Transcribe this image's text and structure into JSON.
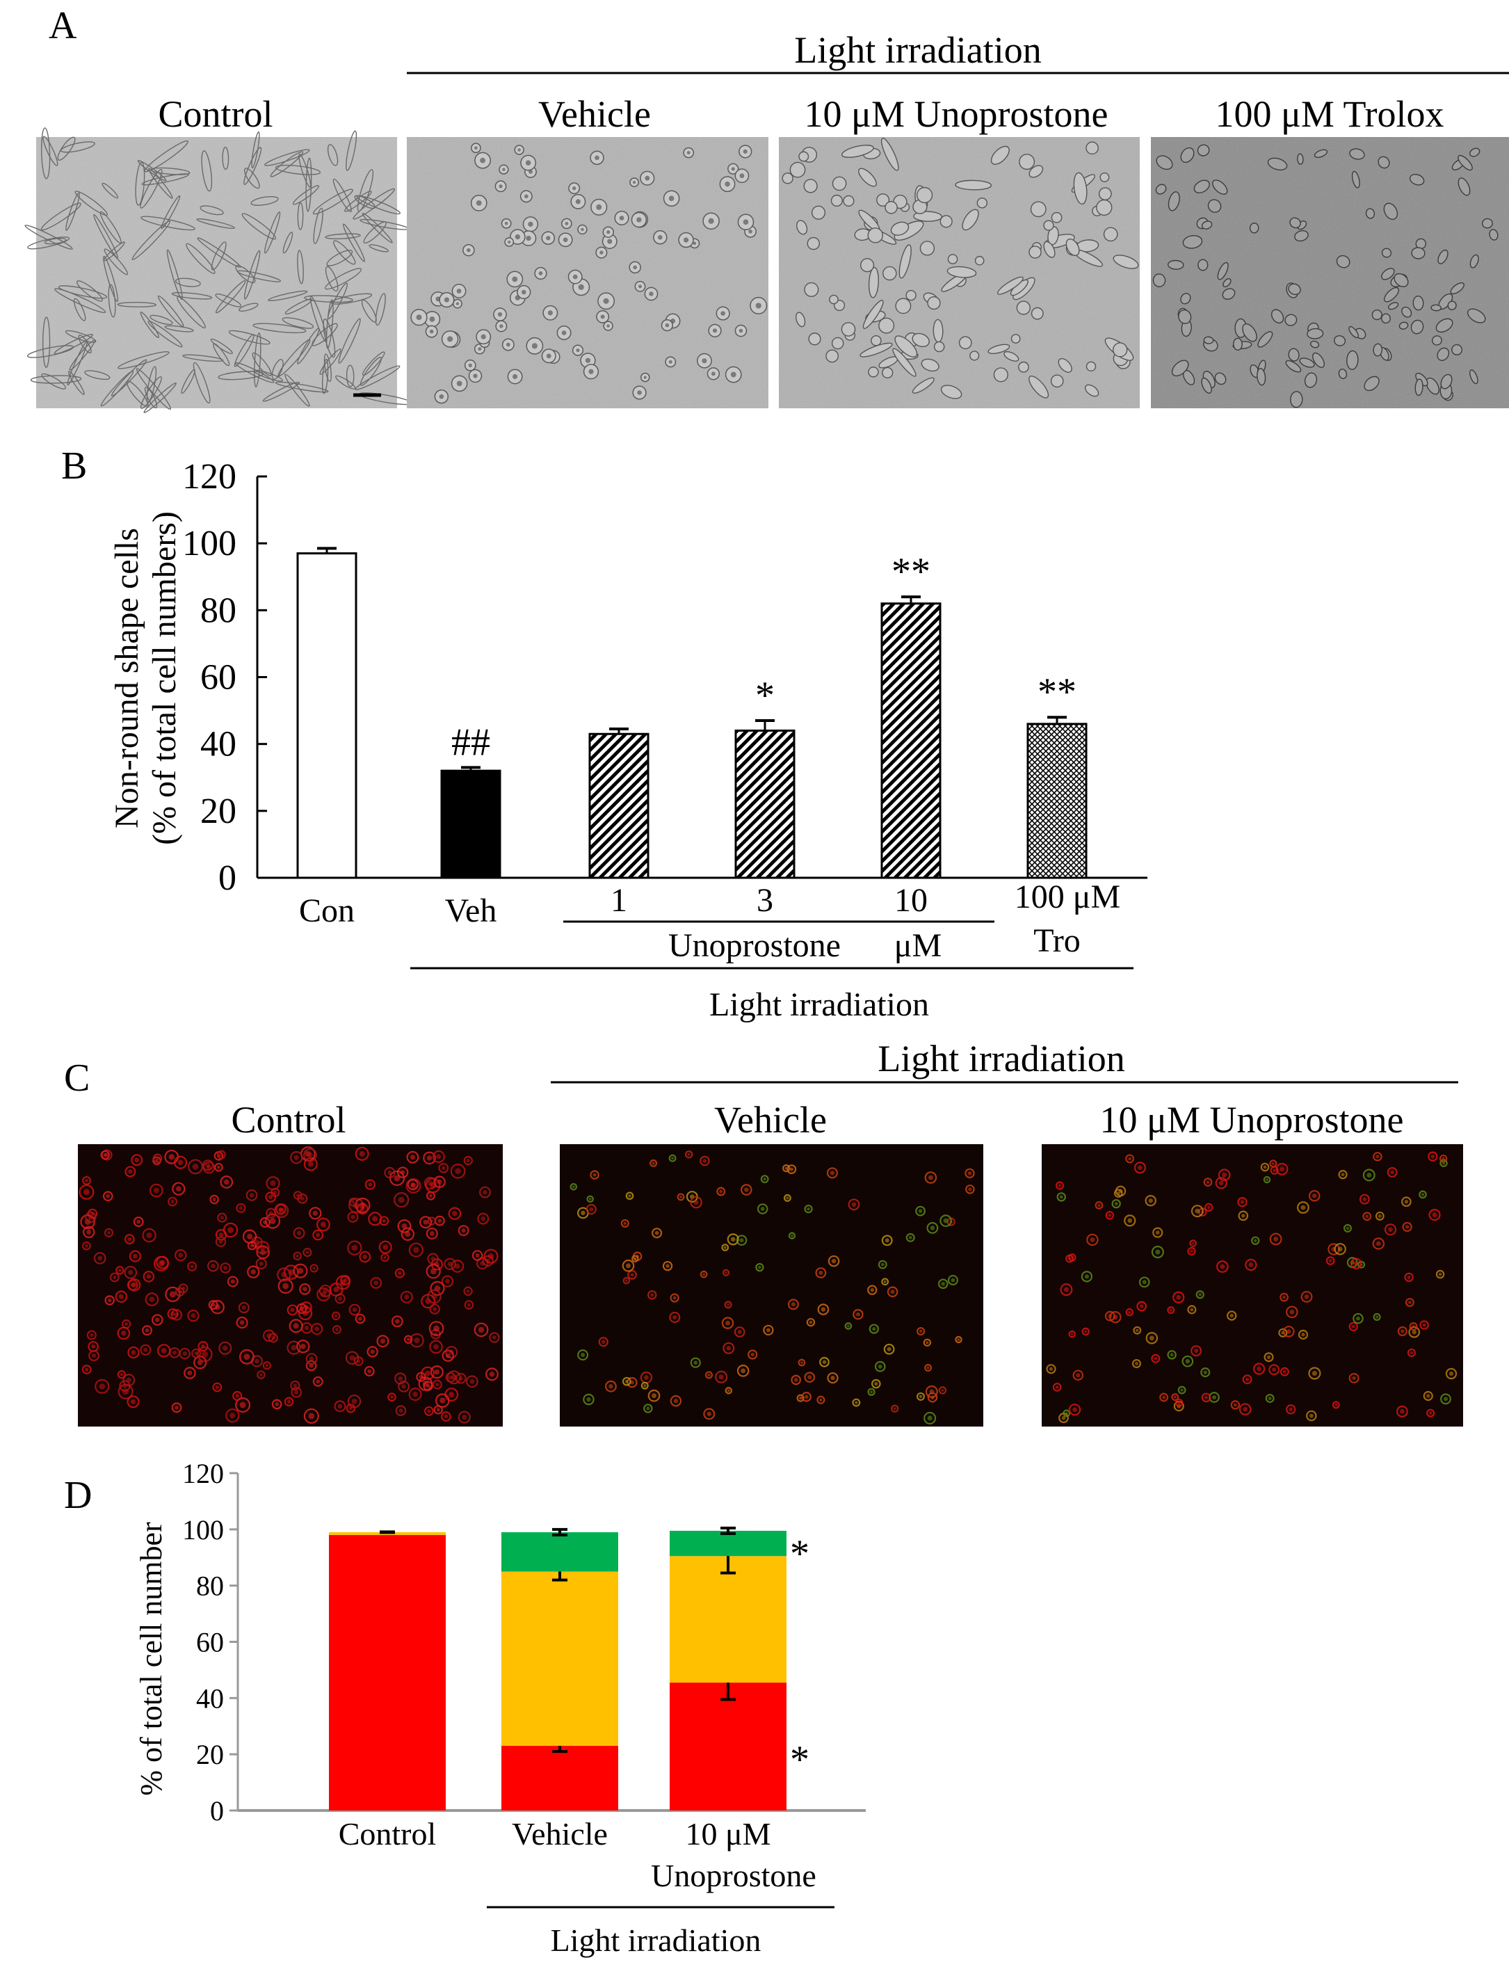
{
  "panel_letters": {
    "a": "A",
    "b": "B",
    "c": "C",
    "d": "D"
  },
  "panel_a": {
    "header": "Light irradiation",
    "micrographs": [
      {
        "label": "Control"
      },
      {
        "label": "Vehicle"
      },
      {
        "label": "10 μM Unoprostone"
      },
      {
        "label": "100 μM  Trolox"
      }
    ]
  },
  "panel_c": {
    "header": "Light irradiation",
    "micrographs": [
      {
        "label": "Control"
      },
      {
        "label": "Vehicle"
      },
      {
        "label": "10 μM Unoprostone"
      }
    ]
  },
  "chart_data": [
    {
      "type": "bar",
      "panel": "B",
      "ylabel_lines": [
        "Non-round shape cells",
        "(% of total cell numbers)"
      ],
      "ylim": [
        0,
        120
      ],
      "yticks": [
        0,
        20,
        40,
        60,
        80,
        100,
        120
      ],
      "categories": [
        "Con",
        "Veh",
        "1",
        "3",
        "10",
        "100 μM"
      ],
      "values": [
        97,
        32,
        43,
        44,
        82,
        46
      ],
      "errors": [
        1.5,
        1,
        1.5,
        3,
        2,
        2
      ],
      "annotations": [
        "",
        "##",
        "",
        "*",
        "**",
        "**"
      ],
      "fills": [
        "white",
        "black",
        "diag",
        "diag",
        "diag",
        "cross"
      ],
      "group_labels": {
        "unoprostone": "Unoprostone",
        "unoprostone_unit": "μM",
        "trolox": "Tro",
        "light": "Light irradiation"
      }
    },
    {
      "type": "bar",
      "stacked": true,
      "panel": "D",
      "ylabel": "% of total cell number",
      "ylim": [
        0,
        120
      ],
      "yticks": [
        0,
        20,
        40,
        60,
        80,
        100,
        120
      ],
      "category_lines": [
        [
          "Control"
        ],
        [
          "Vehicle"
        ],
        [
          "10 μM",
          "Unoprostone"
        ]
      ],
      "series": [
        {
          "color": "#ff0000",
          "values": [
            98,
            23,
            45.5
          ],
          "errors": [
            0,
            2,
            6
          ]
        },
        {
          "color": "#ffc000",
          "values": [
            1,
            62,
            45
          ],
          "errors": [
            0,
            3,
            6
          ]
        },
        {
          "color": "#00b050",
          "values": [
            0,
            14,
            9
          ],
          "errors": [
            0,
            1,
            1
          ]
        }
      ],
      "annotations": [
        "*",
        "*"
      ],
      "light_label": "Light irradiation"
    }
  ]
}
